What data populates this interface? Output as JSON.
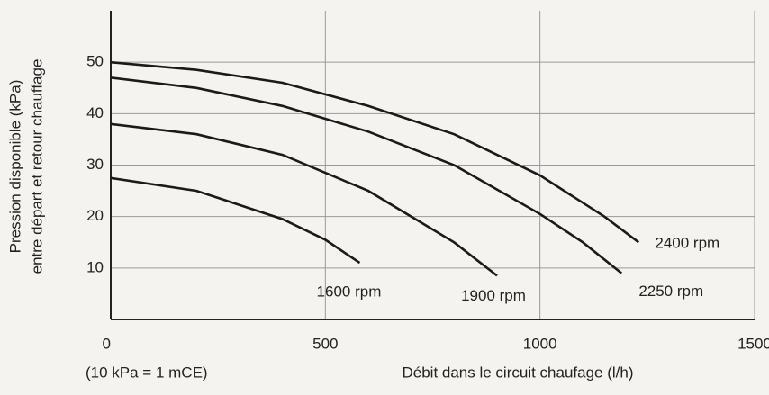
{
  "chart_data": {
    "type": "line",
    "y_title_lines": [
      "Pression disponible (kPa)",
      "entre départ et retour chauffage"
    ],
    "x_title": "Débit dans le circuit chaufage (l/h)",
    "annotation": "(10 kPa = 1 mCE)",
    "xlim": [
      0,
      1500
    ],
    "xticks": [
      0,
      500,
      1000,
      1500
    ],
    "ylim": [
      0,
      60
    ],
    "yticks": [
      10,
      20,
      30,
      40,
      50
    ],
    "grid": true,
    "series": [
      {
        "name": "1600 rpm",
        "color": "#1a1a1a",
        "x": [
          0,
          200,
          400,
          500,
          580
        ],
        "values": [
          27.5,
          25,
          19.5,
          15.5,
          11
        ]
      },
      {
        "name": "1900 rpm",
        "color": "#1a1a1a",
        "x": [
          0,
          200,
          400,
          600,
          800,
          900
        ],
        "values": [
          38,
          36,
          32,
          25,
          15,
          8.5
        ]
      },
      {
        "name": "2250 rpm",
        "color": "#1a1a1a",
        "x": [
          0,
          200,
          400,
          600,
          800,
          1000,
          1100,
          1190
        ],
        "values": [
          47,
          45,
          41.5,
          36.5,
          30,
          20.5,
          15,
          9
        ]
      },
      {
        "name": "2400 rpm",
        "color": "#1a1a1a",
        "x": [
          0,
          200,
          400,
          600,
          800,
          1000,
          1150,
          1230
        ],
        "values": [
          50,
          48.5,
          46,
          41.5,
          36,
          28,
          20,
          15
        ]
      }
    ]
  }
}
